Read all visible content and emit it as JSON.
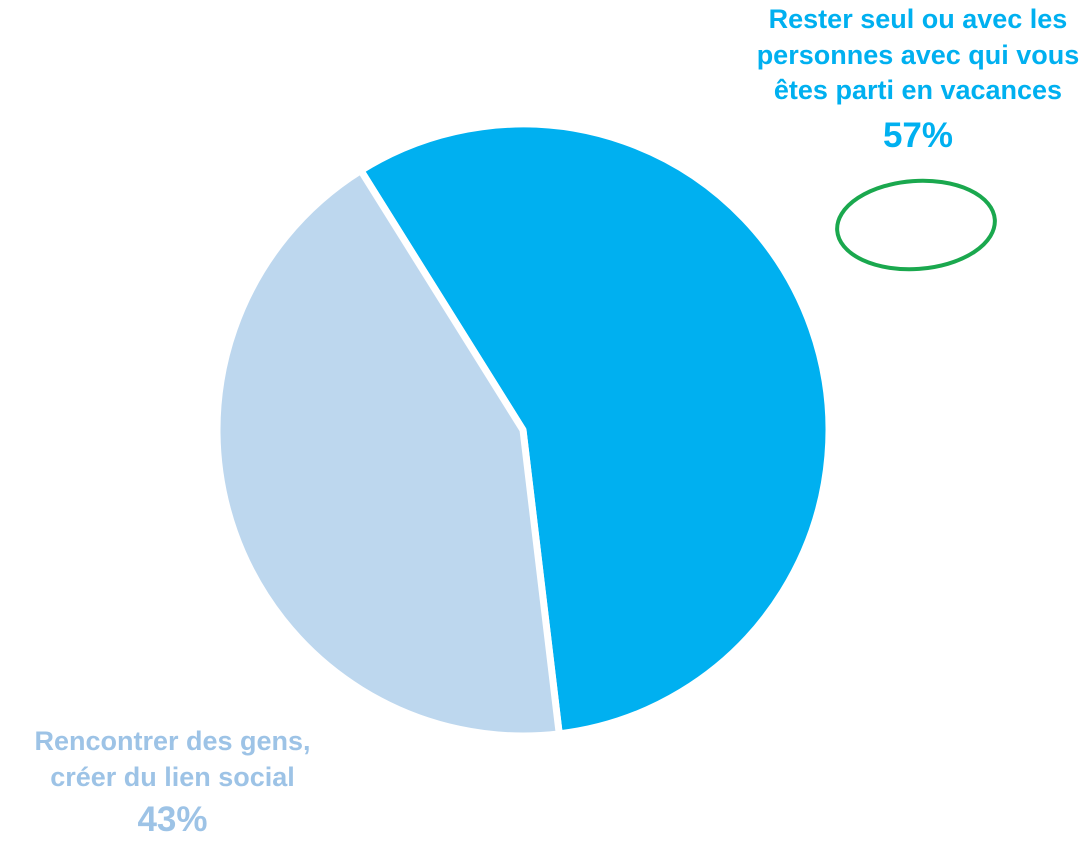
{
  "chart_data": {
    "type": "pie",
    "slices": [
      {
        "label": "Rester seul ou avec les personnes avec qui vous êtes parti en vacances",
        "value": 57,
        "display": "57%",
        "color": "#00b0f0",
        "highlighted": true
      },
      {
        "label": "Rencontrer des gens, créer du lien social",
        "value": 43,
        "display": "43%",
        "color": "#bdd7ee",
        "highlighted": false
      }
    ],
    "label_colors": [
      "#00b0f0",
      "#9dc3e6"
    ],
    "highlight_color": "#1aa84e"
  }
}
